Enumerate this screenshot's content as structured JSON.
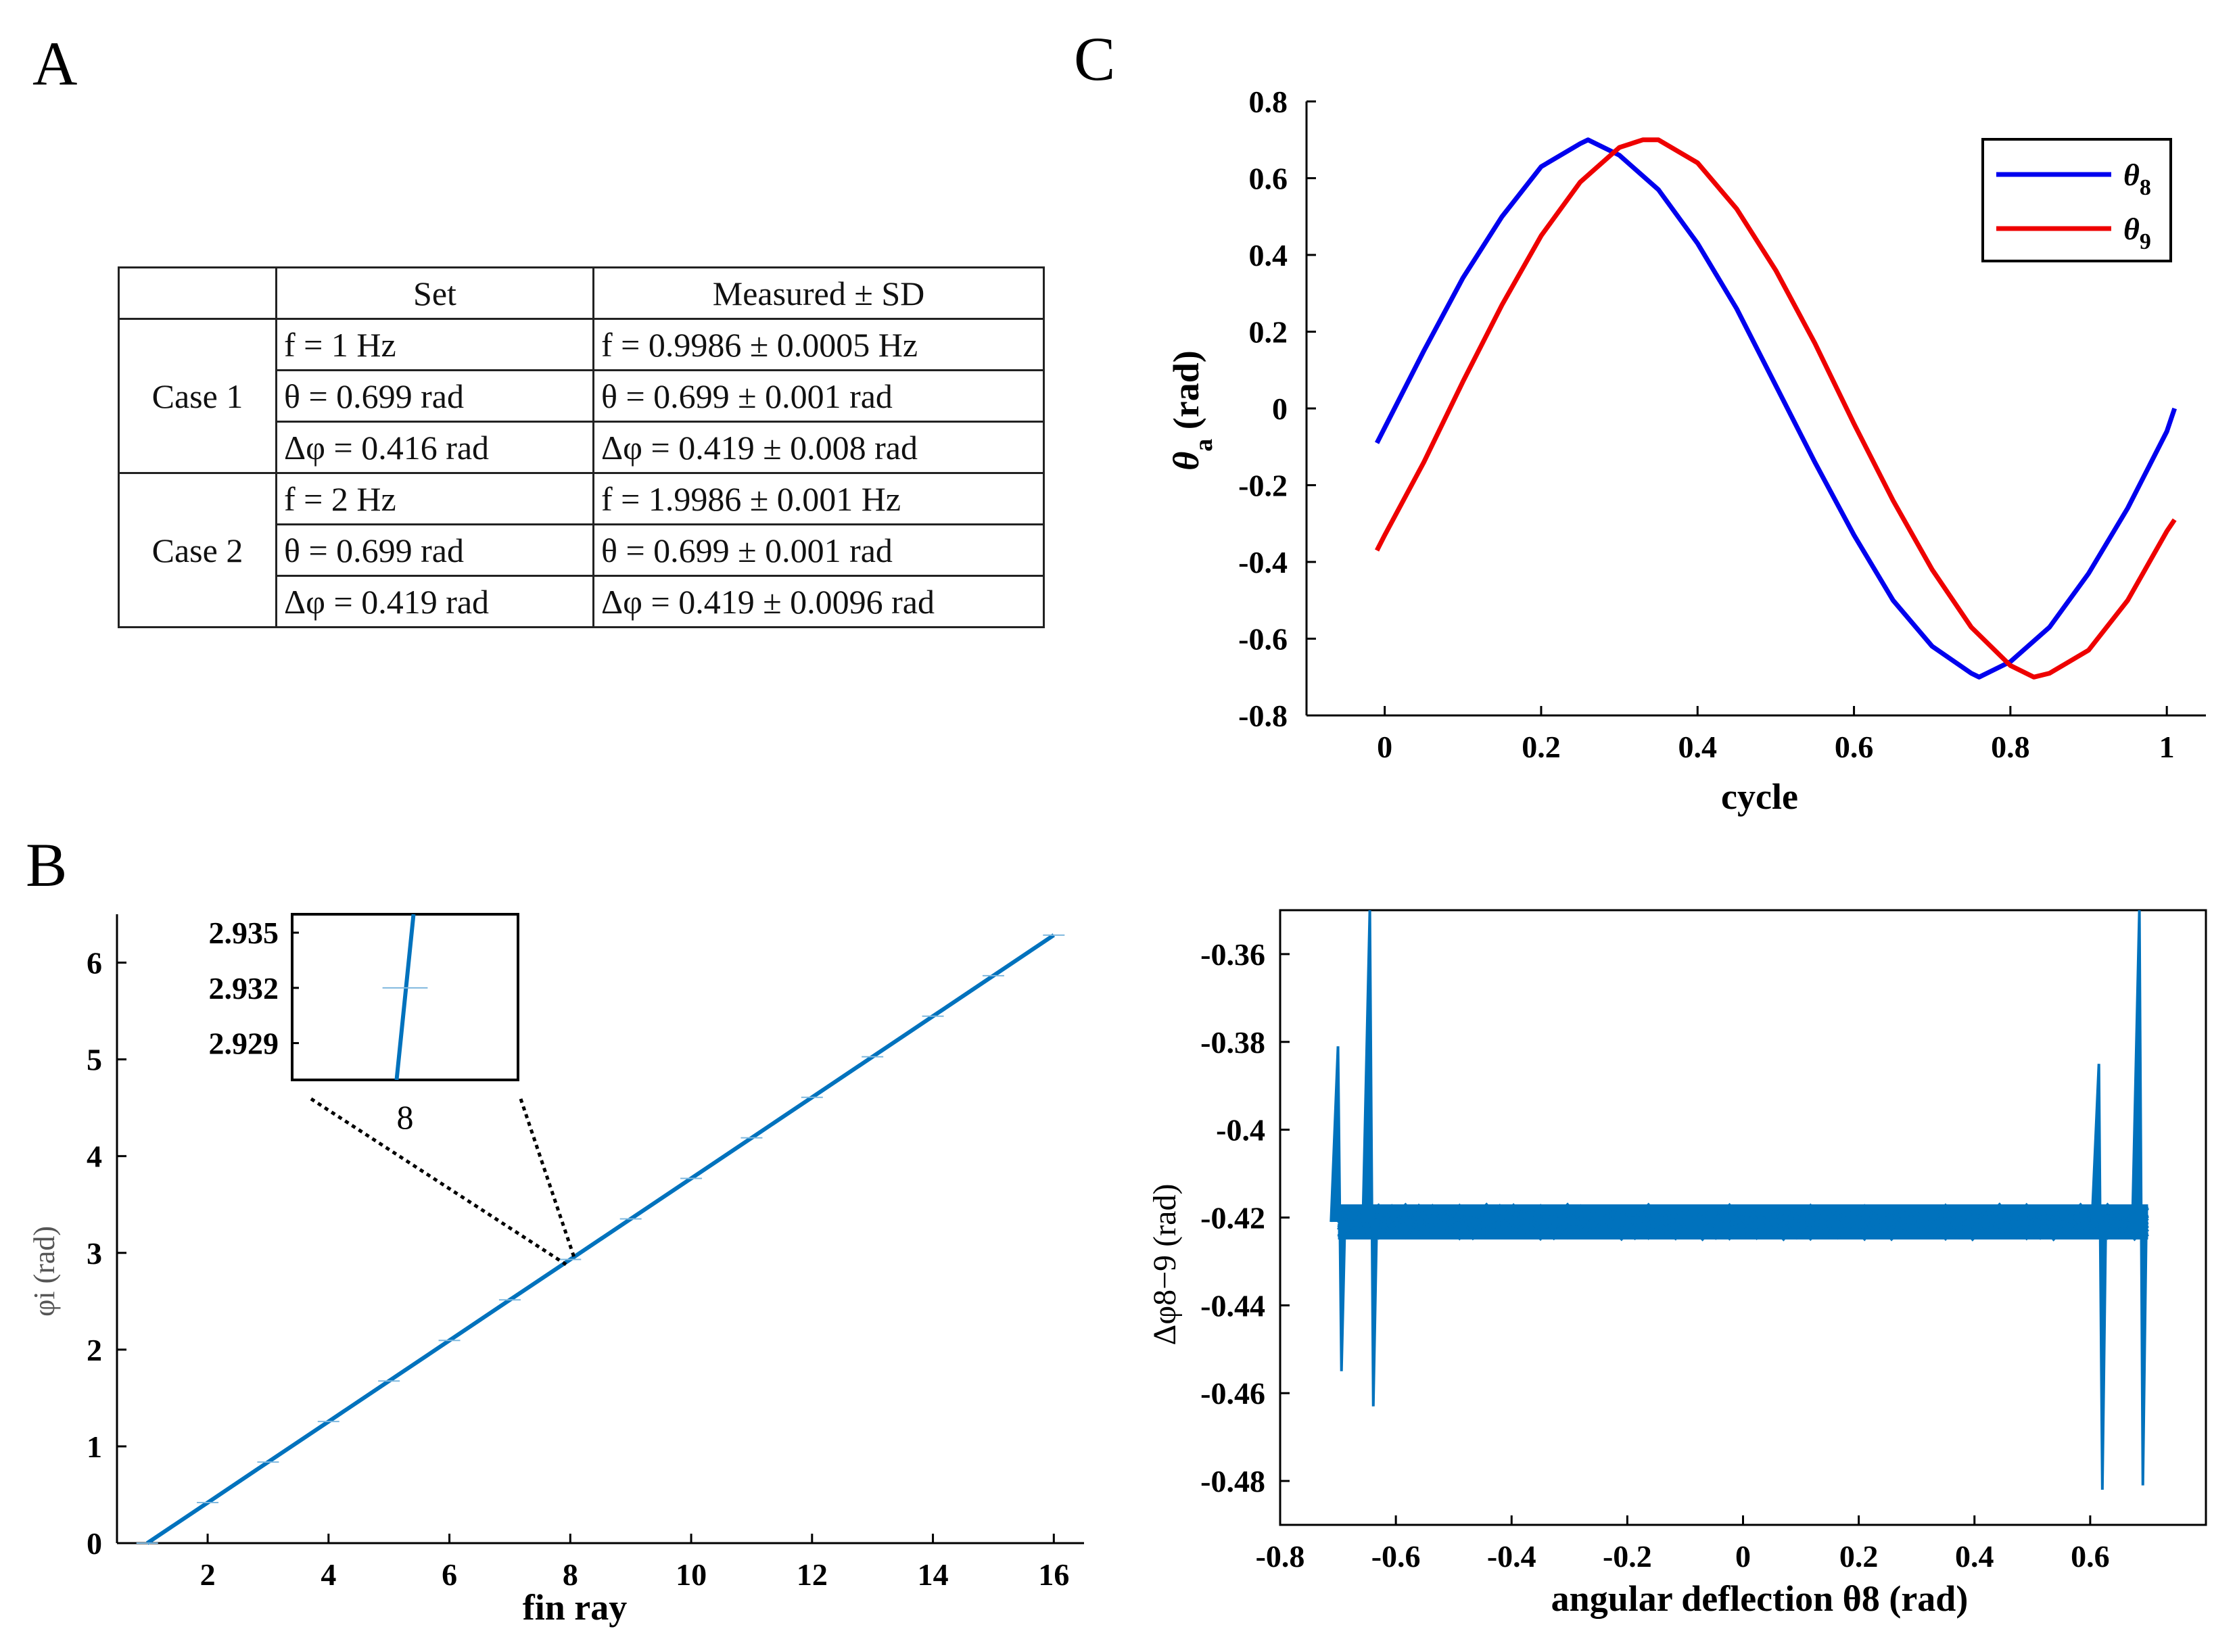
{
  "panel_labels": {
    "a": "A",
    "b": "B",
    "c": "C"
  },
  "table": {
    "headers": [
      "",
      "Set",
      "Measured ± SD"
    ],
    "groups": [
      {
        "case": "Case 1",
        "rows": [
          {
            "set": "f = 1 Hz",
            "measured": "f = 0.9986 ± 0.0005 Hz"
          },
          {
            "set": "θ = 0.699 rad",
            "measured": "θ = 0.699 ± 0.001 rad"
          },
          {
            "set": "Δφ = 0.416 rad",
            "measured": "Δφ = 0.419 ± 0.008 rad"
          }
        ]
      },
      {
        "case": "Case 2",
        "rows": [
          {
            "set": "f = 2 Hz",
            "measured": "f = 1.9986 ± 0.001 Hz"
          },
          {
            "set": "θ = 0.699 rad",
            "measured": "θ = 0.699 ± 0.001 rad"
          },
          {
            "set": "Δφ = 0.419 rad",
            "measured": "Δφ = 0.419 ± 0.0096 rad"
          }
        ]
      }
    ]
  },
  "colors": {
    "blue": "#0000ee",
    "red": "#ee0000",
    "plot_blue": "#0072bd",
    "axis": "#000000"
  },
  "chart_data": [
    {
      "id": "C",
      "type": "line",
      "xlabel": "cycle",
      "ylabel_main": "θ",
      "ylabel_sub": "a",
      "ylabel_unit": "(rad)",
      "xlim": [
        -0.1,
        1.05
      ],
      "ylim": [
        -0.8,
        0.8
      ],
      "xticks": [
        0,
        0.2,
        0.4,
        0.6,
        0.8,
        1
      ],
      "xtick_labels": [
        "0",
        "0.2",
        "0.4",
        "0.6",
        "0.8",
        "1"
      ],
      "yticks": [
        -0.8,
        -0.6,
        -0.4,
        -0.2,
        0,
        0.2,
        0.4,
        0.6,
        0.8
      ],
      "ytick_labels": [
        "-0.8",
        "-0.6",
        "-0.4",
        "-0.2",
        "0",
        "0.2",
        "0.4",
        "0.6",
        "0.8"
      ],
      "legend_position": "top-right",
      "series": [
        {
          "name": "θ",
          "name_sub": "8",
          "color": "#0000ee",
          "x": [
            -0.01,
            0.0,
            0.05,
            0.1,
            0.15,
            0.2,
            0.25,
            0.26,
            0.3,
            0.35,
            0.4,
            0.45,
            0.5,
            0.55,
            0.6,
            0.65,
            0.7,
            0.75,
            0.76,
            0.8,
            0.85,
            0.9,
            0.95,
            1.0,
            1.01
          ],
          "y": [
            -0.09,
            -0.05,
            0.15,
            0.34,
            0.5,
            0.63,
            0.69,
            0.7,
            0.66,
            0.57,
            0.43,
            0.26,
            0.06,
            -0.14,
            -0.33,
            -0.5,
            -0.62,
            -0.69,
            -0.7,
            -0.66,
            -0.57,
            -0.43,
            -0.26,
            -0.06,
            0.0
          ]
        },
        {
          "name": "θ",
          "name_sub": "9",
          "color": "#ee0000",
          "x": [
            -0.01,
            0.0,
            0.05,
            0.1,
            0.15,
            0.2,
            0.25,
            0.3,
            0.33,
            0.35,
            0.4,
            0.45,
            0.5,
            0.55,
            0.6,
            0.65,
            0.7,
            0.75,
            0.8,
            0.83,
            0.85,
            0.9,
            0.95,
            1.0,
            1.01
          ],
          "y": [
            -0.37,
            -0.33,
            -0.14,
            0.07,
            0.27,
            0.45,
            0.59,
            0.68,
            0.7,
            0.7,
            0.64,
            0.52,
            0.36,
            0.17,
            -0.04,
            -0.24,
            -0.42,
            -0.57,
            -0.67,
            -0.7,
            -0.69,
            -0.63,
            -0.5,
            -0.32,
            -0.29
          ]
        }
      ]
    },
    {
      "id": "B",
      "type": "line",
      "xlabel": "fin ray",
      "ylabel": "φi (rad)",
      "xlim": [
        0.5,
        16.5
      ],
      "ylim": [
        0,
        6.5
      ],
      "xticks": [
        2,
        4,
        6,
        8,
        10,
        12,
        14,
        16
      ],
      "yticks": [
        0,
        1,
        2,
        3,
        4,
        5,
        6
      ],
      "series": [
        {
          "name": "",
          "color": "#0072bd",
          "x": [
            1,
            2,
            3,
            4,
            5,
            6,
            7,
            8,
            9,
            10,
            11,
            12,
            13,
            14,
            15,
            16
          ],
          "y": [
            0.0,
            0.419,
            0.838,
            1.257,
            1.676,
            2.095,
            2.514,
            2.932,
            3.351,
            3.77,
            4.189,
            4.608,
            5.027,
            5.446,
            5.865,
            6.284
          ]
        }
      ],
      "inset": {
        "xtick_labels": [
          "8"
        ],
        "yticks": [
          2.929,
          2.932,
          2.935
        ],
        "ylim": [
          2.927,
          2.936
        ],
        "xlim": [
          7.996,
          8.004
        ]
      }
    },
    {
      "id": "D",
      "type": "line",
      "xlabel": "angular deflection θ8 (rad)",
      "ylabel": "Δφ8−9 (rad)",
      "xlim": [
        -0.8,
        0.8
      ],
      "ylim": [
        -0.49,
        -0.35
      ],
      "xticks": [
        -0.8,
        -0.6,
        -0.4,
        -0.2,
        0,
        0.2,
        0.4,
        0.6
      ],
      "yticks": [
        -0.48,
        -0.46,
        -0.44,
        -0.42,
        -0.4,
        -0.38,
        -0.36
      ],
      "band": {
        "x_from": -0.7,
        "x_to": 0.7,
        "center": -0.421,
        "half_width": 0.004
      },
      "spikes": [
        {
          "x": -0.7,
          "y_min": -0.455,
          "y_max": -0.381
        },
        {
          "x": -0.645,
          "y_min": -0.463,
          "y_max": -0.35
        },
        {
          "x": 0.615,
          "y_min": -0.482,
          "y_max": -0.385
        },
        {
          "x": 0.685,
          "y_min": -0.481,
          "y_max": -0.35
        }
      ]
    }
  ]
}
